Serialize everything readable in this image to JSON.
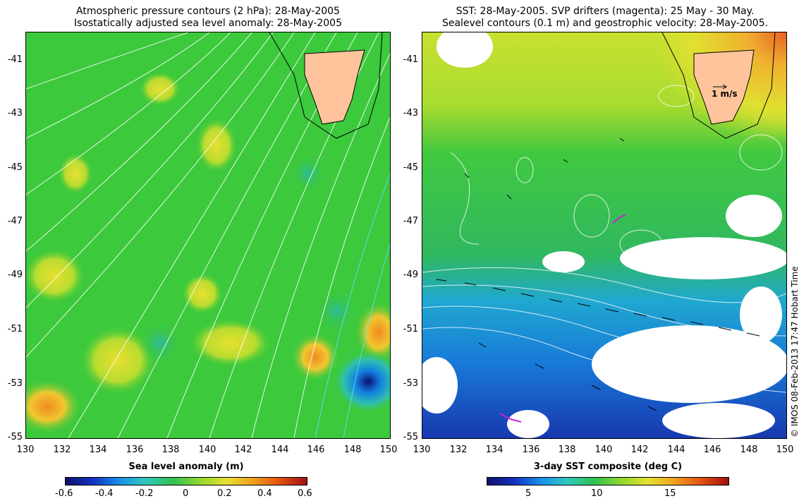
{
  "left_panel": {
    "title_line1": "Atmospheric pressure contours (2 hPa): 28-May-2005",
    "title_line2": "Isostatically adjusted sea level anomaly: 28-May-2005",
    "colorbar": {
      "title": "Sea level anomaly (m)",
      "ticks": [
        "-0.6",
        "-0.4",
        "-0.2",
        "0",
        "0.2",
        "0.4",
        "0.6"
      ]
    }
  },
  "right_panel": {
    "title_line1": "SST: 28-May-2005. SVP drifters (magenta): 25 May - 30 May.",
    "title_line2": "Sealevel contours (0.1 m) and geostrophic velocity: 28-May-2005.",
    "velocity_scale_label": "1 m/s",
    "colorbar": {
      "title": "3-day SST composite (deg C)",
      "ticks": [
        "5",
        "10",
        "15"
      ]
    }
  },
  "axes": {
    "y_ticks": [
      "-41",
      "-43",
      "-45",
      "-47",
      "-49",
      "-51",
      "-53",
      "-55"
    ],
    "x_ticks": [
      "130",
      "132",
      "134",
      "136",
      "138",
      "140",
      "142",
      "144",
      "146",
      "148",
      "150"
    ]
  },
  "credit": "© IMOS 08-Feb-2013 17:47 Hobart Time",
  "colors": {
    "land": "#ffc49b",
    "sla_mid": "#3cc93c",
    "sst_warm": "#e8e030",
    "sst_cold": "#2030c0"
  }
}
